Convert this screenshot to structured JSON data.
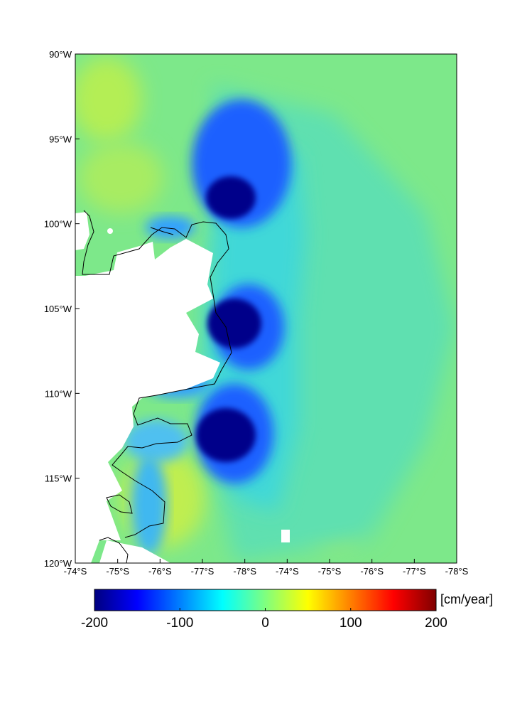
{
  "map": {
    "y_tick_labels": [
      "90°W",
      "95°W",
      "100°W",
      "105°W",
      "110°W",
      "115°W",
      "120°W"
    ],
    "x_tick_labels": [
      "-74°S",
      "-75°S",
      "-76°S",
      "-77°S",
      "-78°S",
      "-74°S",
      "-75°S",
      "-76°S",
      "-77°S",
      "-78°S"
    ]
  },
  "colorbar": {
    "unit": "[cm/year]",
    "tick_labels": [
      "-200",
      "-100",
      "0",
      "100",
      "200"
    ],
    "range": [
      -200,
      200
    ],
    "colormap": "jet",
    "colors": [
      "#00007f",
      "#0000ff",
      "#00ffff",
      "#7fff7f",
      "#ffff00",
      "#ff0000",
      "#7f0000"
    ]
  },
  "colors": {
    "background_field": "#7de88a",
    "land_mask": "#ffffff",
    "coastline": "#000000"
  }
}
